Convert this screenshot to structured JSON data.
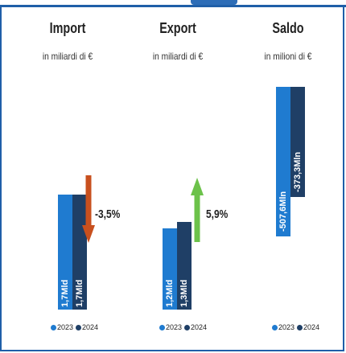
{
  "chart_data": [
    {
      "type": "bar",
      "title": "Import",
      "subtitle": "in miliardi di €",
      "categories": [
        "2023",
        "2024"
      ],
      "values": [
        1.7,
        1.7
      ],
      "value_labels": [
        "1,7Mld",
        "1,7Mld"
      ],
      "change": {
        "label": "-3,5%",
        "direction": "down",
        "color": "#c8501e"
      },
      "legend": [
        "2023",
        "2024"
      ]
    },
    {
      "type": "bar",
      "title": "Export",
      "subtitle": "in miliardi di €",
      "categories": [
        "2023",
        "2024"
      ],
      "values": [
        1.2,
        1.3
      ],
      "value_labels": [
        "1,2Mld",
        "1,3Mld"
      ],
      "change": {
        "label": "5,9%",
        "direction": "up",
        "color": "#6cc24a"
      },
      "legend": [
        "2023",
        "2024"
      ]
    },
    {
      "type": "bar",
      "title": "Saldo",
      "subtitle": "in milioni di €",
      "categories": [
        "2023",
        "2024"
      ],
      "values": [
        -507.6,
        -373.3
      ],
      "value_labels": [
        "-507,6Mln",
        "-373,3Mln"
      ],
      "legend": [
        "2023",
        "2024"
      ]
    }
  ],
  "colors": {
    "series_2023": "#1f7bd0",
    "series_2024": "#1f3f66"
  }
}
